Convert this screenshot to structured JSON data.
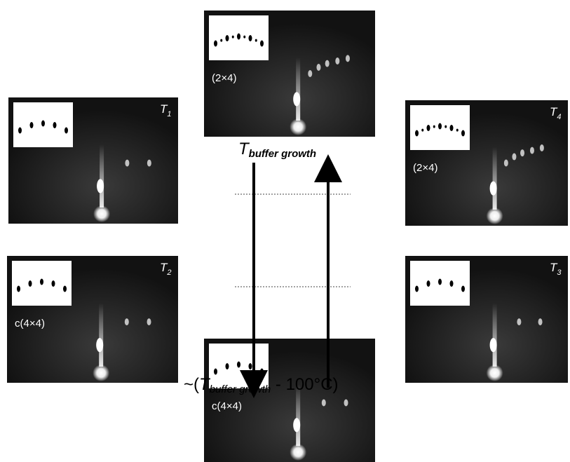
{
  "panels": [
    {
      "reconstruction": "(2×4)"
    },
    {
      "temperature": {
        "symbol": "T",
        "subscript": "1"
      }
    },
    {
      "temperature": {
        "symbol": "T",
        "subscript": "4"
      },
      "reconstruction": "(2×4)"
    },
    {
      "temperature": {
        "symbol": "T",
        "subscript": "2"
      },
      "reconstruction": "c(4×4)"
    },
    {
      "temperature": {
        "symbol": "T",
        "subscript": "3"
      }
    },
    {
      "reconstruction": "c(4×4)"
    }
  ],
  "center": {
    "top_label": {
      "symbol": "T",
      "subscript": "buffer growth"
    },
    "bottom_label": {
      "prefix": "~(",
      "symbol": "T",
      "subscript": "buffer growth",
      "suffix": " - 100°C)"
    }
  }
}
